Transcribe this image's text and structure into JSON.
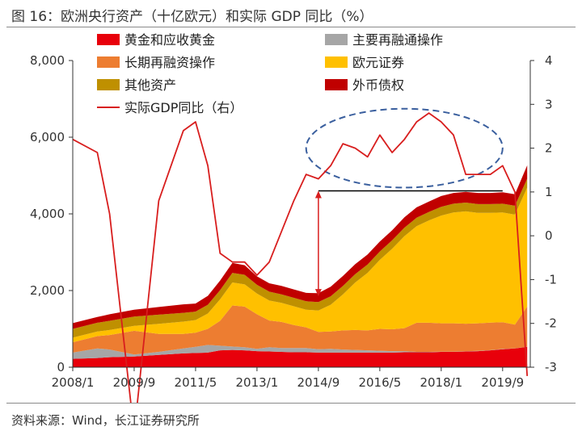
{
  "figure": {
    "title": "图 16：欧洲央行资产（十亿欧元）和实际 GDP 同比（%）",
    "source": "资料来源：Wind，长江证券研究所"
  },
  "chart_data": {
    "type": "area",
    "title": "欧洲央行资产（十亿欧元）和实际 GDP 同比（%）",
    "x_ticks": [
      "2008/1",
      "2009/9",
      "2011/5",
      "2013/1",
      "2014/9",
      "2016/5",
      "2018/1",
      "2019/9"
    ],
    "x": [
      "2008/1",
      "2008/9",
      "2009/1",
      "2009/9",
      "2010/5",
      "2011/1",
      "2011/5",
      "2011/9",
      "2012/1",
      "2012/5",
      "2012/9",
      "2013/1",
      "2013/5",
      "2013/9",
      "2014/1",
      "2014/5",
      "2014/9",
      "2015/1",
      "2015/5",
      "2015/9",
      "2016/1",
      "2016/5",
      "2016/9",
      "2017/1",
      "2017/5",
      "2017/9",
      "2018/1",
      "2018/5",
      "2018/9",
      "2019/1",
      "2019/5",
      "2019/9",
      "2020/1",
      "2020/5"
    ],
    "y_left": {
      "ticks": [
        "0",
        "2,000",
        "4,000",
        "6,000",
        "8,000"
      ],
      "ylim": [
        0,
        8000
      ]
    },
    "y_right": {
      "ticks": [
        "-3",
        "-2",
        "-1",
        "0",
        "1",
        "2",
        "3",
        "4"
      ],
      "ylim": [
        -3,
        4
      ]
    },
    "legend": {
      "placement": "top"
    },
    "stack_series": [
      {
        "name": "黄金和应收黄金",
        "color": "#e8000b",
        "values": [
          220,
          240,
          260,
          280,
          320,
          360,
          370,
          380,
          440,
          450,
          440,
          420,
          410,
          400,
          390,
          390,
          380,
          380,
          380,
          380,
          380,
          380,
          380,
          390,
          390,
          390,
          400,
          400,
          410,
          420,
          440,
          470,
          490,
          530
        ]
      },
      {
        "name": "主要再融通操作",
        "color": "#a6a6a6",
        "values": [
          160,
          250,
          200,
          50,
          80,
          130,
          160,
          200,
          120,
          90,
          80,
          60,
          110,
          100,
          110,
          110,
          90,
          100,
          80,
          70,
          60,
          50,
          40,
          30,
          10,
          10,
          5,
          5,
          5,
          5,
          5,
          5,
          2,
          5
        ]
      },
      {
        "name": "长期再融资操作",
        "color": "#ed7d31",
        "values": [
          270,
          320,
          380,
          620,
          470,
          380,
          370,
          420,
          650,
          1070,
          1060,
          900,
          700,
          680,
          600,
          540,
          450,
          450,
          500,
          520,
          520,
          570,
          570,
          600,
          760,
          760,
          740,
          740,
          720,
          720,
          720,
          700,
          620,
          1050
        ]
      },
      {
        "name": "欧元证券",
        "color": "#ffc000",
        "values": [
          120,
          120,
          130,
          130,
          260,
          320,
          330,
          400,
          560,
          600,
          580,
          540,
          520,
          500,
          490,
          460,
          560,
          700,
          940,
          1240,
          1500,
          1800,
          2100,
          2400,
          2520,
          2670,
          2810,
          2890,
          2930,
          2880,
          2860,
          2860,
          2870,
          3100
        ]
      },
      {
        "name": "其他资产",
        "color": "#bf9000",
        "values": [
          230,
          230,
          240,
          240,
          240,
          230,
          220,
          230,
          240,
          250,
          250,
          230,
          230,
          220,
          220,
          220,
          220,
          220,
          220,
          220,
          220,
          220,
          220,
          220,
          220,
          220,
          230,
          230,
          230,
          230,
          230,
          230,
          230,
          230
        ]
      },
      {
        "name": "外币债权",
        "color": "#c00000",
        "values": [
          150,
          150,
          170,
          180,
          200,
          220,
          210,
          230,
          250,
          260,
          250,
          220,
          220,
          220,
          220,
          220,
          230,
          250,
          260,
          260,
          260,
          260,
          260,
          270,
          270,
          270,
          280,
          280,
          280,
          290,
          290,
          300,
          300,
          350
        ]
      }
    ],
    "line_series": {
      "name": "实际GDP同比（右）",
      "color": "#d81e1e",
      "axis": "right",
      "values": [
        2.2,
        1.9,
        0.5,
        -4.5,
        0.8,
        2.4,
        2.6,
        1.6,
        -0.4,
        -0.6,
        -0.6,
        -0.9,
        -0.6,
        0.1,
        0.8,
        1.4,
        1.3,
        1.6,
        2.1,
        2.0,
        1.8,
        2.3,
        1.9,
        2.2,
        2.6,
        2.8,
        2.6,
        2.3,
        1.4,
        1.4,
        1.4,
        1.6,
        1.0,
        -3.2
      ]
    },
    "annotations": [
      {
        "type": "horizontal-line",
        "from": "2014/9",
        "to": "2019/9",
        "y": 4600,
        "axis": "left"
      },
      {
        "type": "double-arrow",
        "x": "2014/9",
        "y_from": 1850,
        "y_to": 4600,
        "axis": "left"
      },
      {
        "type": "dashed-ellipse",
        "from": "2014/5",
        "to": "2019/9",
        "y_range": [
          1.1,
          2.9
        ],
        "axis": "right"
      }
    ]
  }
}
